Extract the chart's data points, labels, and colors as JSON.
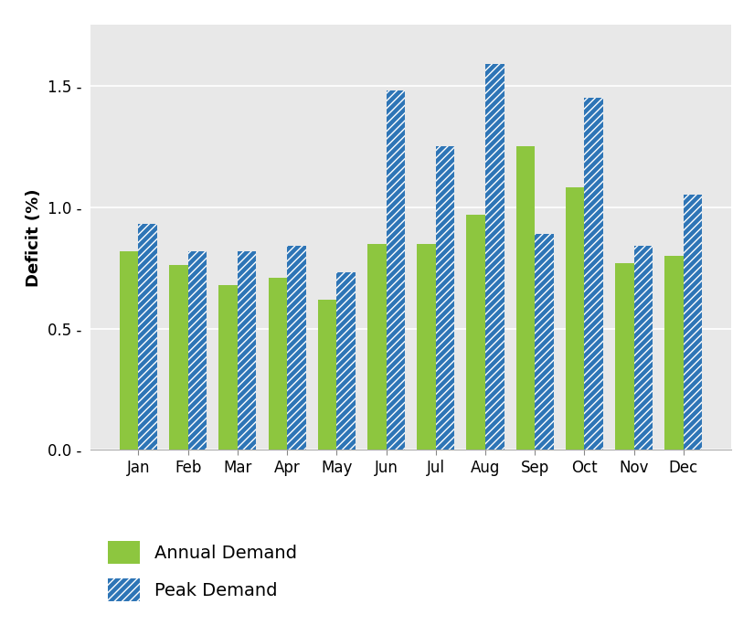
{
  "months": [
    "Jan",
    "Feb",
    "Mar",
    "Apr",
    "May",
    "Jun",
    "Jul",
    "Aug",
    "Sep",
    "Oct",
    "Nov",
    "Dec"
  ],
  "annual_demand": [
    0.82,
    0.76,
    0.68,
    0.71,
    0.62,
    0.85,
    0.85,
    0.97,
    1.25,
    1.08,
    0.77,
    0.8
  ],
  "peak_demand": [
    0.93,
    0.82,
    0.82,
    0.84,
    0.73,
    1.48,
    1.25,
    1.59,
    0.89,
    1.45,
    0.84,
    1.05
  ],
  "annual_color": "#8DC63F",
  "peak_color": "#2E75B6",
  "plot_bg_color": "#E8E8E8",
  "fig_bg_color": "#FFFFFF",
  "ylabel": "Deficit (%)",
  "ylim": [
    0,
    1.75
  ],
  "yticks": [
    0.0,
    0.5,
    1.0,
    1.5
  ],
  "ytick_labels": [
    "0.0 -",
    "0.5 -",
    "1.0 -",
    "1.5 -"
  ],
  "legend_annual": "Annual Demand",
  "legend_peak": "Peak Demand",
  "bar_width": 0.38,
  "label_fontsize": 13,
  "tick_fontsize": 12,
  "legend_fontsize": 14
}
